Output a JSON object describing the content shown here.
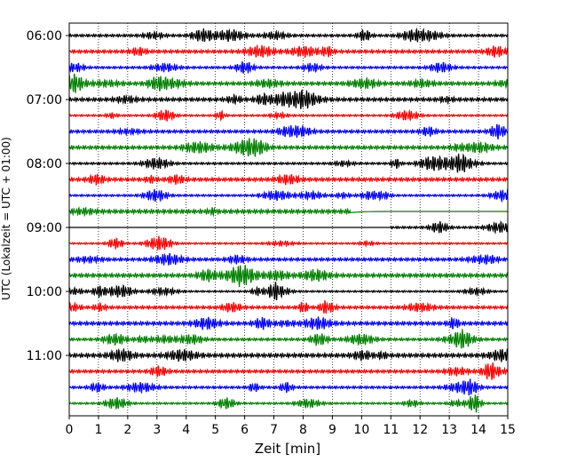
{
  "chart_data": {
    "type": "line",
    "title": "",
    "xlabel": "Zeit  [min]",
    "ylabel": "UTC (Lokalzeit = UTC + 01:00)",
    "xlim": [
      0,
      15
    ],
    "x_ticks": [
      "0",
      "1",
      "2",
      "3",
      "4",
      "5",
      "6",
      "7",
      "8",
      "9",
      "10",
      "11",
      "12",
      "13",
      "14",
      "15"
    ],
    "y_ticks": [
      "06:00",
      "07:00",
      "08:00",
      "09:00",
      "10:00",
      "11:00"
    ],
    "rows_per_hour": 4,
    "row_minutes": 15,
    "start_time": "06:00",
    "grid": "vertical dotted lines at each minute",
    "colors": [
      "#000000",
      "#ff0000",
      "#0000ff",
      "#008000"
    ],
    "gap": {
      "description": "data gap: row 08:45 ends at ~9.6 min (flat afterwards), row 09:00 empty until ~11.0 min",
      "row_08_45_signal_end_min": 9.6,
      "row_09_00_signal_start_min": 11.0
    }
  }
}
